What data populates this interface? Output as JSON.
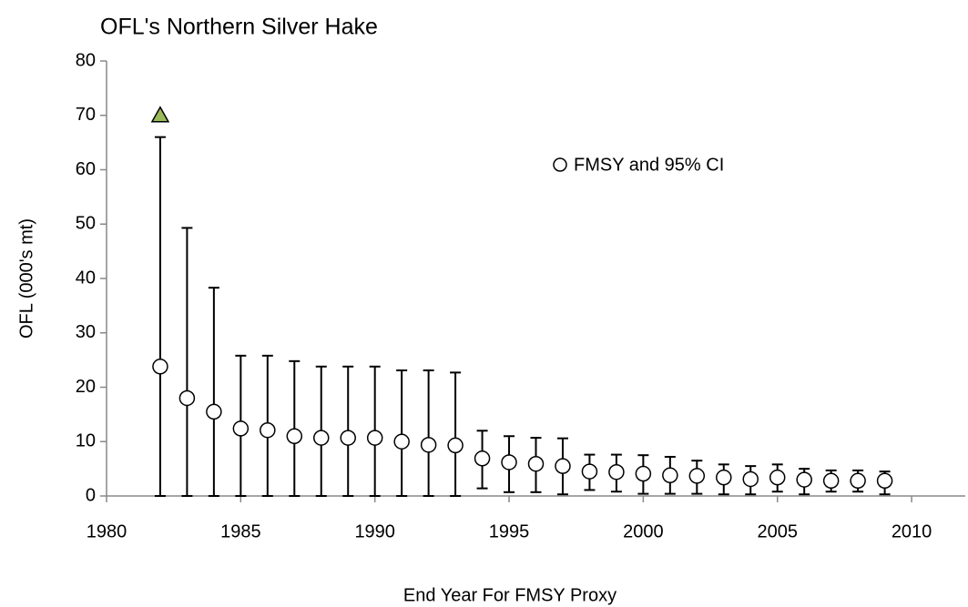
{
  "chart_data": {
    "type": "errorbar",
    "title": "OFL's Northern Silver Hake",
    "x_label": "End Year For FMSY Proxy",
    "y_label": "OFL (000's mt)",
    "x": [
      1982,
      1983,
      1984,
      1985,
      1986,
      1987,
      1988,
      1989,
      1990,
      1991,
      1992,
      1993,
      1994,
      1995,
      1996,
      1997,
      1998,
      1999,
      2000,
      2001,
      2002,
      2003,
      2004,
      2005,
      2006,
      2007,
      2008,
      2009
    ],
    "series": [
      {
        "name": "FMSY and 95% CI",
        "color": "#ffffff",
        "marker": "circle",
        "values": [
          23.8,
          18,
          15.5,
          12.4,
          12.1,
          11,
          10.7,
          10.7,
          10.7,
          10,
          9.4,
          9.3,
          6.9,
          6.2,
          5.9,
          5.5,
          4.5,
          4.4,
          4.1,
          3.8,
          3.7,
          3.4,
          3.1,
          3.4,
          3.0,
          2.8,
          2.8,
          2.8
        ],
        "lower": [
          0,
          0,
          0,
          0,
          0,
          0,
          0,
          0,
          0,
          0,
          0,
          0,
          1.4,
          0.7,
          0.7,
          0.3,
          1.1,
          0.8,
          0.4,
          0.4,
          0.4,
          0.3,
          0.3,
          0.8,
          0.3,
          0.8,
          0.8,
          0.3
        ],
        "upper": [
          66,
          49.3,
          38.3,
          25.8,
          25.8,
          24.8,
          23.8,
          23.8,
          23.8,
          23.1,
          23.1,
          22.7,
          12,
          11,
          10.7,
          10.6,
          7.6,
          7.6,
          7.5,
          7.2,
          6.5,
          5.8,
          5.5,
          5.8,
          5.0,
          4.7,
          4.7,
          4.5
        ]
      },
      {
        "color": "#9bbb59",
        "marker": "triangle",
        "x": [
          1982
        ],
        "values": [
          70
        ]
      }
    ],
    "xlim": [
      1980,
      2012
    ],
    "ylim": [
      0,
      80
    ],
    "xticks": [
      1980,
      1985,
      1990,
      1995,
      2000,
      2005,
      2010
    ],
    "yticks": [
      0,
      10,
      20,
      30,
      40,
      50,
      60,
      70,
      80
    ]
  }
}
